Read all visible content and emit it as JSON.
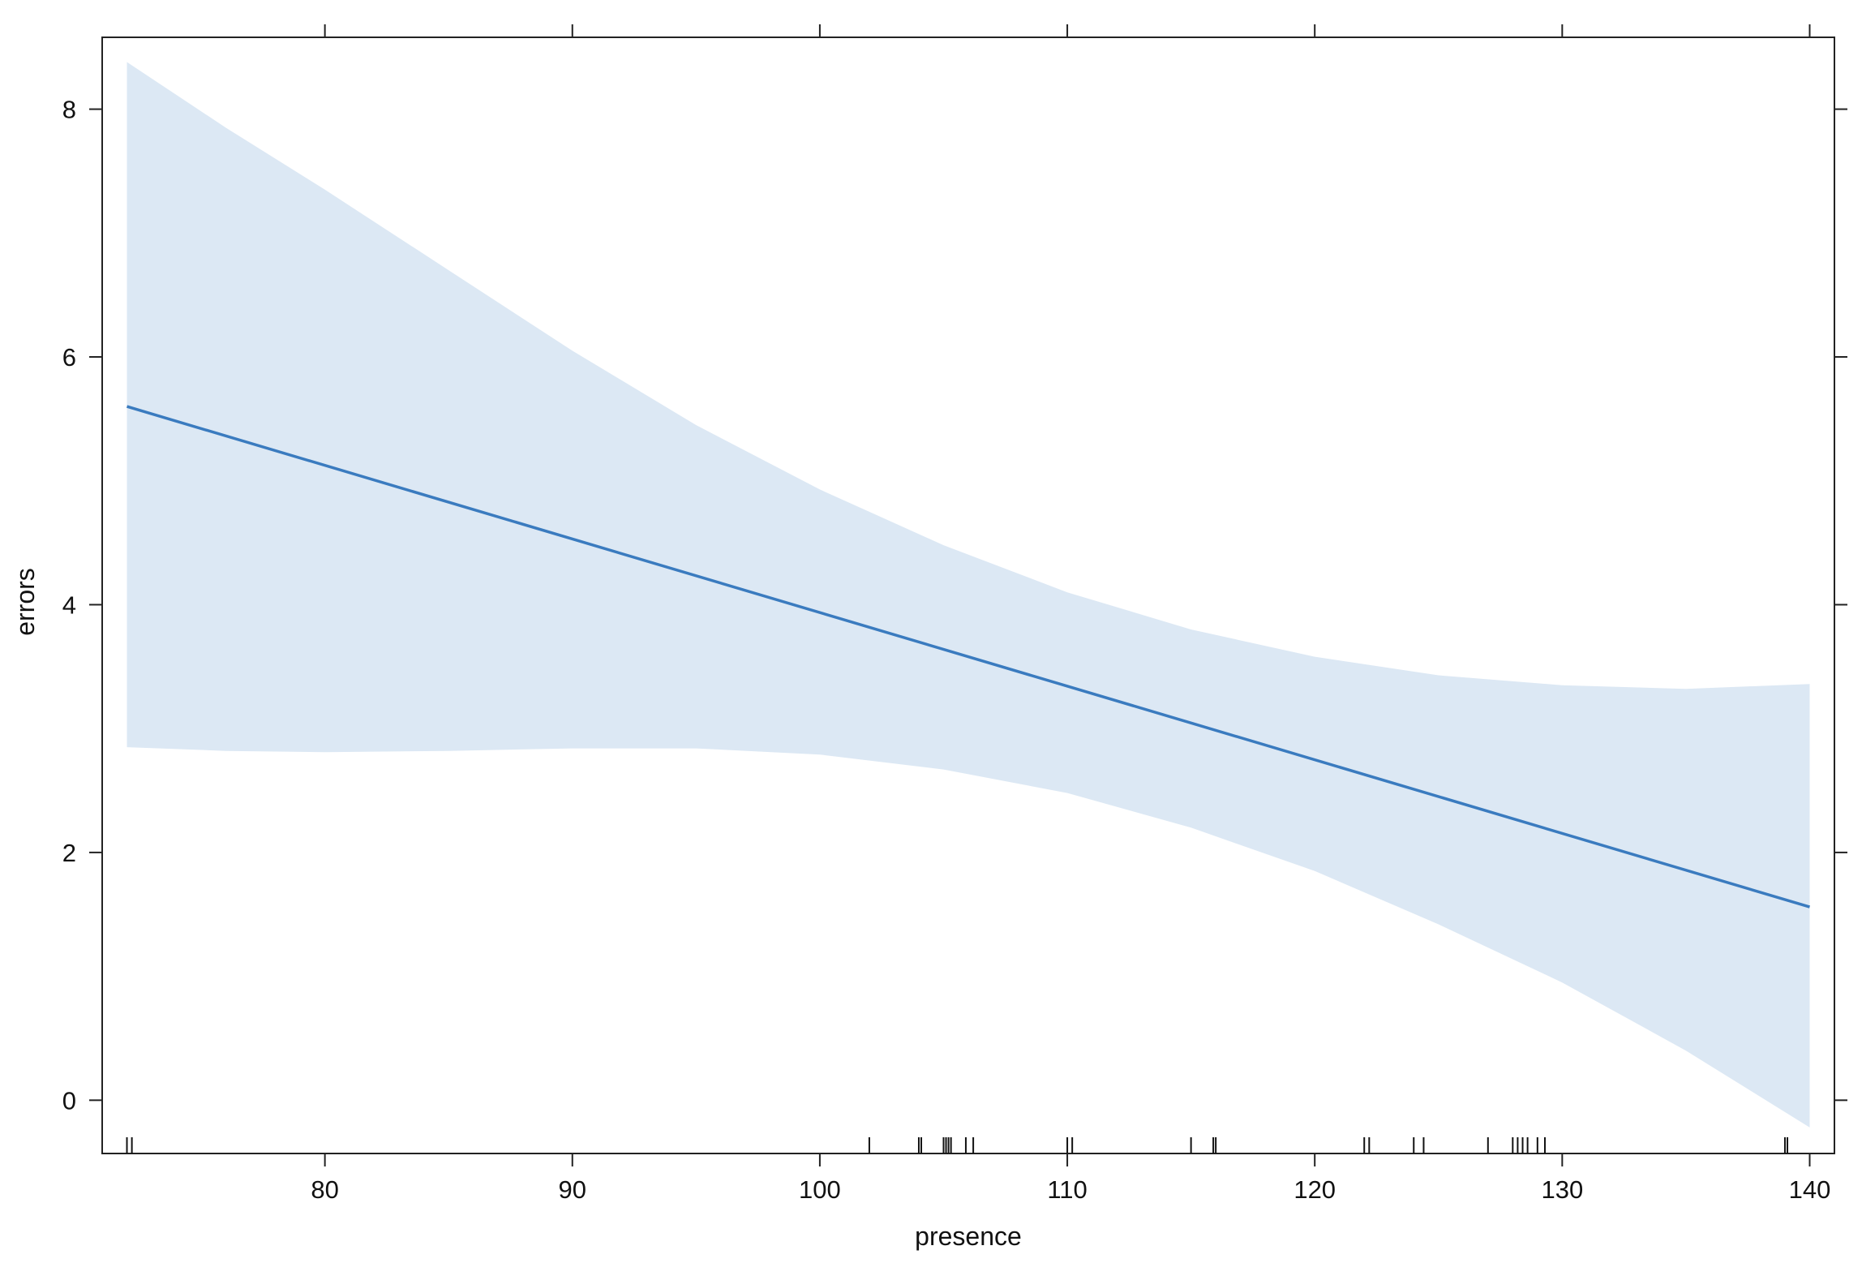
{
  "chart_data": {
    "type": "line",
    "title": "",
    "xlabel": "presence",
    "ylabel": "errors",
    "xlim": [
      71,
      141
    ],
    "ylim": [
      -0.43,
      8.58
    ],
    "xticks": [
      80,
      90,
      100,
      110,
      120,
      130,
      140
    ],
    "yticks": [
      0,
      2,
      4,
      6,
      8
    ],
    "grid": false,
    "legend": "none",
    "series": [
      {
        "x": [
          72,
          140
        ],
        "y": [
          5.6,
          1.56
        ],
        "color": "#3a7bbf"
      }
    ],
    "confidence_band": {
      "color": "#dce8f4",
      "x": [
        72,
        76,
        80,
        85,
        90,
        95,
        100,
        105,
        110,
        115,
        120,
        125,
        130,
        135,
        140
      ],
      "upper": [
        8.38,
        7.85,
        7.35,
        6.7,
        6.05,
        5.45,
        4.93,
        4.48,
        4.1,
        3.8,
        3.58,
        3.43,
        3.35,
        3.32,
        3.36
      ],
      "lower": [
        2.85,
        2.82,
        2.81,
        2.82,
        2.84,
        2.84,
        2.79,
        2.67,
        2.48,
        2.2,
        1.85,
        1.42,
        0.95,
        0.4,
        -0.22
      ]
    },
    "rug": [
      72,
      72.2,
      102,
      104,
      104.1,
      105,
      105.1,
      105.2,
      105.3,
      105.9,
      106.2,
      110,
      110.2,
      115,
      115.9,
      116,
      122,
      122.2,
      124,
      124.4,
      127,
      128,
      128.2,
      128.4,
      128.6,
      129,
      129.3,
      139,
      139.1
    ]
  }
}
